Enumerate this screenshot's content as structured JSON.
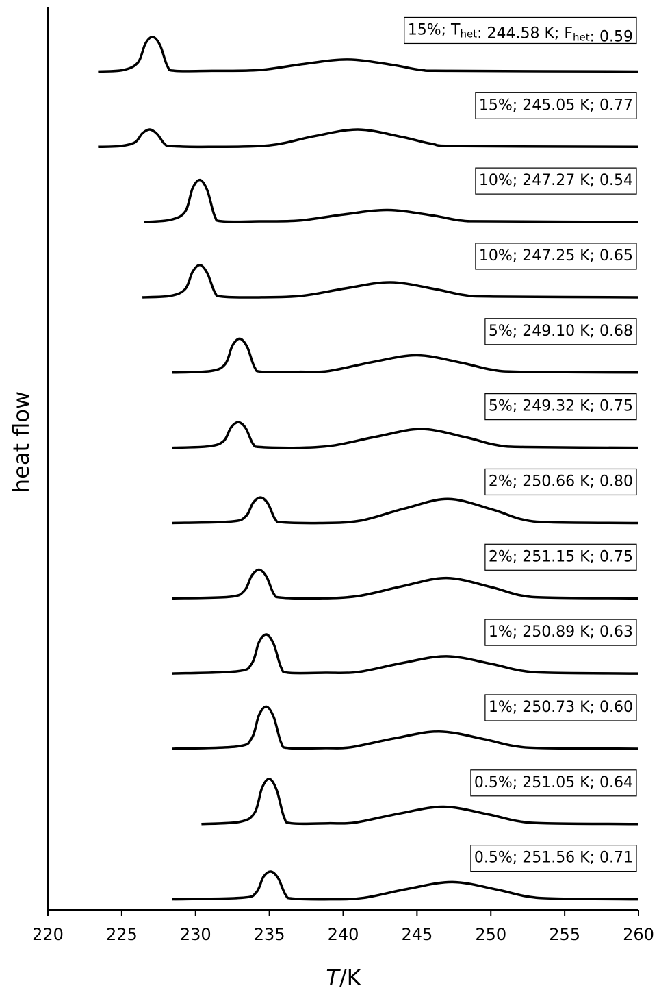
{
  "chart_data": {
    "type": "line",
    "xlabel": "T/K",
    "ylabel": "heat flow",
    "xlim": [
      220,
      260
    ],
    "xticks": [
      220,
      225,
      230,
      235,
      240,
      245,
      250,
      255,
      260
    ],
    "ylim": [
      0,
      12
    ],
    "series": [
      {
        "name": "15%; Thet: 244.58 K; Fhet: 0.59",
        "color": "#000000",
        "x": [
          223.4,
          225.1,
          226.1,
          226.6,
          227.1,
          227.6,
          228.1,
          228.6,
          231.1,
          234.3,
          237.3,
          240.3,
          243.3,
          245.3,
          247.3,
          260
        ],
        "values": [
          11.14,
          11.16,
          11.26,
          11.51,
          11.6,
          11.49,
          11.21,
          11.15,
          11.15,
          11.16,
          11.24,
          11.3,
          11.23,
          11.16,
          11.15,
          11.14
        ]
      },
      {
        "name": "15%; 245.05 K; 0.77",
        "color": "#000000",
        "x": [
          223.4,
          224.9,
          225.9,
          226.4,
          226.9,
          227.4,
          227.9,
          228.4,
          230.9,
          235,
          238,
          241,
          244,
          246,
          248,
          260
        ],
        "values": [
          10.14,
          10.15,
          10.2,
          10.32,
          10.37,
          10.31,
          10.18,
          10.15,
          10.14,
          10.16,
          10.28,
          10.37,
          10.27,
          10.18,
          10.15,
          10.14
        ]
      },
      {
        "name": "10%; 247.27 K; 0.54",
        "color": "#000000",
        "x": [
          226.5,
          228.3,
          229.3,
          229.8,
          230.3,
          230.8,
          231.3,
          231.8,
          234.3,
          237,
          240,
          243,
          246,
          248,
          250,
          260
        ],
        "values": [
          9.14,
          9.17,
          9.28,
          9.59,
          9.7,
          9.56,
          9.22,
          9.15,
          9.15,
          9.16,
          9.24,
          9.3,
          9.23,
          9.16,
          9.15,
          9.14
        ]
      },
      {
        "name": "10%; 247.25 K; 0.65",
        "color": "#000000",
        "x": [
          226.4,
          228.3,
          229.3,
          229.8,
          230.3,
          230.8,
          231.3,
          231.8,
          234.3,
          237.2,
          240.2,
          243.2,
          246.2,
          248.2,
          250.2,
          260
        ],
        "values": [
          8.14,
          8.16,
          8.25,
          8.48,
          8.57,
          8.46,
          8.21,
          8.15,
          8.14,
          8.16,
          8.26,
          8.34,
          8.25,
          8.17,
          8.15,
          8.14
        ]
      },
      {
        "name": "5%; 249.10 K; 0.68",
        "color": "#000000",
        "x": [
          228.4,
          231,
          232,
          232.5,
          233,
          233.5,
          234,
          234.5,
          237,
          239,
          242,
          245,
          248,
          250,
          252,
          260
        ],
        "values": [
          7.14,
          7.16,
          7.25,
          7.5,
          7.59,
          7.48,
          7.21,
          7.15,
          7.15,
          7.16,
          7.28,
          7.37,
          7.27,
          7.18,
          7.15,
          7.14
        ]
      },
      {
        "name": "5%; 249.32 K; 0.75",
        "color": "#000000",
        "x": [
          228.4,
          230.9,
          231.9,
          232.4,
          232.9,
          233.4,
          233.9,
          234.4,
          236.9,
          239.3,
          242.3,
          245.3,
          248.3,
          250.3,
          252.3,
          260
        ],
        "values": [
          6.14,
          6.16,
          6.23,
          6.41,
          6.48,
          6.4,
          6.19,
          6.15,
          6.14,
          6.17,
          6.29,
          6.39,
          6.28,
          6.18,
          6.15,
          6.14
        ]
      },
      {
        "name": "2%; 250.66 K; 0.80",
        "color": "#000000",
        "x": [
          228.4,
          232.4,
          233.4,
          233.9,
          234.4,
          234.9,
          235.4,
          235.9,
          238.4,
          241.1,
          244.1,
          247.1,
          250.1,
          252.1,
          254.1,
          260
        ],
        "values": [
          5.14,
          5.16,
          5.23,
          5.41,
          5.48,
          5.4,
          5.19,
          5.15,
          5.14,
          5.17,
          5.33,
          5.46,
          5.32,
          5.19,
          5.15,
          5.14
        ]
      },
      {
        "name": "2%; 251.15 K; 0.75",
        "color": "#000000",
        "x": [
          228.4,
          232.3,
          233.3,
          233.8,
          234.3,
          234.8,
          235.3,
          235.8,
          238.3,
          241,
          244,
          247,
          250,
          252,
          254,
          260
        ],
        "values": [
          4.14,
          4.16,
          4.24,
          4.44,
          4.52,
          4.43,
          4.2,
          4.15,
          4.14,
          4.17,
          4.3,
          4.41,
          4.29,
          4.18,
          4.15,
          4.14
        ]
      },
      {
        "name": "1%; 250.89 K; 0.63",
        "color": "#000000",
        "x": [
          228.4,
          232.8,
          233.8,
          234.3,
          234.8,
          235.3,
          235.8,
          236.3,
          238.8,
          241,
          244,
          247,
          250,
          252,
          254,
          260
        ],
        "values": [
          3.14,
          3.17,
          3.27,
          3.56,
          3.66,
          3.53,
          3.22,
          3.15,
          3.15,
          3.16,
          3.28,
          3.37,
          3.27,
          3.18,
          3.15,
          3.14
        ]
      },
      {
        "name": "1%; 250.73 K; 0.60",
        "color": "#000000",
        "x": [
          228.4,
          232.8,
          233.8,
          234.3,
          234.8,
          235.3,
          235.8,
          236.3,
          238.8,
          240.5,
          243.5,
          246.5,
          249.5,
          251.5,
          253.5,
          260
        ],
        "values": [
          2.14,
          2.17,
          2.28,
          2.59,
          2.7,
          2.56,
          2.22,
          2.15,
          2.15,
          2.16,
          2.28,
          2.37,
          2.27,
          2.18,
          2.15,
          2.14
        ]
      },
      {
        "name": "0.5%; 251.05 K; 0.64",
        "color": "#000000",
        "x": [
          230.4,
          233,
          234,
          234.5,
          235,
          235.5,
          236,
          236.5,
          239,
          240.8,
          243.8,
          246.8,
          249.8,
          251.8,
          253.8,
          260
        ],
        "values": [
          1.14,
          1.17,
          1.29,
          1.62,
          1.74,
          1.59,
          1.23,
          1.15,
          1.15,
          1.16,
          1.28,
          1.37,
          1.27,
          1.18,
          1.15,
          1.14
        ]
      },
      {
        "name": "0.5%; 251.56 K; 0.71",
        "color": "#000000",
        "x": [
          228.4,
          233.1,
          234.1,
          234.6,
          235.1,
          235.6,
          236.1,
          236.6,
          239.1,
          241.4,
          244.4,
          247.4,
          250.4,
          252.4,
          254.4,
          260
        ],
        "values": [
          0.14,
          0.16,
          0.23,
          0.44,
          0.51,
          0.42,
          0.2,
          0.15,
          0.14,
          0.16,
          0.28,
          0.37,
          0.27,
          0.18,
          0.15,
          0.14
        ]
      }
    ]
  }
}
